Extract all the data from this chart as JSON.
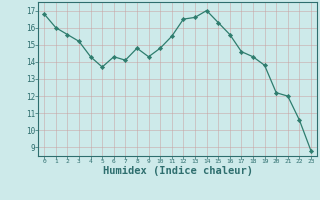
{
  "x": [
    0,
    1,
    2,
    3,
    4,
    5,
    6,
    7,
    8,
    9,
    10,
    11,
    12,
    13,
    14,
    15,
    16,
    17,
    18,
    19,
    20,
    21,
    22,
    23
  ],
  "y": [
    16.8,
    16.0,
    15.6,
    15.2,
    14.3,
    13.7,
    14.3,
    14.1,
    14.8,
    14.3,
    14.8,
    15.5,
    16.5,
    16.6,
    17.0,
    16.3,
    15.6,
    14.6,
    14.3,
    13.8,
    12.2,
    12.0,
    10.6,
    8.8
  ],
  "line_color": "#2e7d6e",
  "marker": "D",
  "marker_size": 2.2,
  "bg_color": "#cdeaea",
  "grid_color": "#b0d8d8",
  "axis_color": "#2e6e6e",
  "xlabel": "Humidex (Indice chaleur)",
  "xlabel_fontsize": 7.5,
  "ylabel_ticks": [
    9,
    10,
    11,
    12,
    13,
    14,
    15,
    16,
    17
  ],
  "xlim": [
    -0.5,
    23.5
  ],
  "ylim": [
    8.5,
    17.5
  ],
  "xticks": [
    0,
    1,
    2,
    3,
    4,
    5,
    6,
    7,
    8,
    9,
    10,
    11,
    12,
    13,
    14,
    15,
    16,
    17,
    18,
    19,
    20,
    21,
    22,
    23
  ]
}
